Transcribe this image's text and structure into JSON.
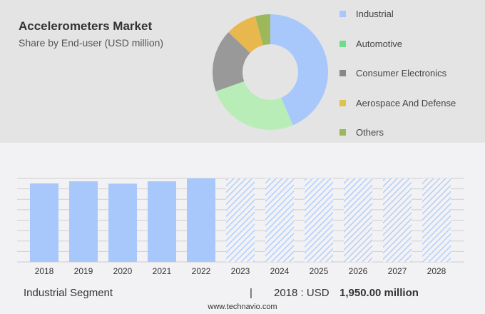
{
  "title": "Accelerometers Market",
  "subtitle": "Share by End-user (USD million)",
  "footer": {
    "segment": "Industrial Segment",
    "separator": "|",
    "year_label": "2018 : USD",
    "value": "1,950.00 million",
    "url": "www.technavio.com"
  },
  "chart_data": [
    {
      "type": "pie",
      "title": "Accelerometers Market - Share by End-user",
      "labels": [
        "Industrial",
        "Automotive",
        "Consumer Electronics",
        "Aerospace And Defense",
        "Others"
      ],
      "values": [
        43.6,
        26,
        17.5,
        8.7,
        4.2
      ],
      "colors": [
        "#a8c8fc",
        "#b8edb8",
        "#999999",
        "#e8b84e",
        "#9cb85a"
      ],
      "legend_colors": [
        "#a8c8fc",
        "#6ddc8c",
        "#888888",
        "#e0c050",
        "#9cb85a"
      ]
    },
    {
      "type": "bar",
      "categories": [
        "2018",
        "2019",
        "2020",
        "2021",
        "2022",
        "2023",
        "2024",
        "2025",
        "2026",
        "2027",
        "2028"
      ],
      "values": [
        1950,
        2003,
        1945,
        2003,
        2075,
        null,
        null,
        null,
        null,
        null,
        null
      ],
      "forecast": [
        false,
        false,
        false,
        false,
        false,
        true,
        true,
        true,
        true,
        true,
        true
      ],
      "ylim": [
        0,
        2075
      ],
      "grid": true,
      "color": "#a8c8fc"
    }
  ]
}
